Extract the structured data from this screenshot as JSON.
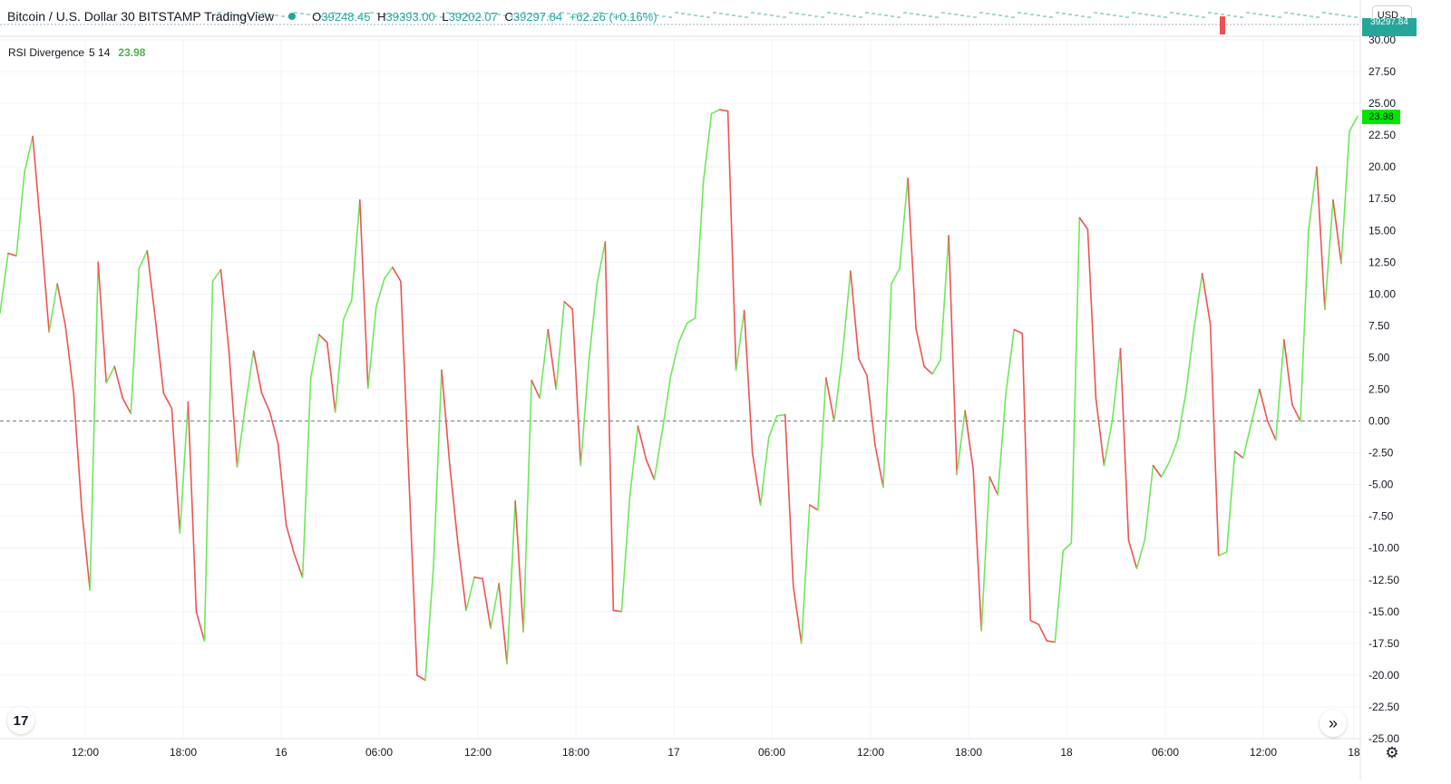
{
  "header": {
    "title": "Bitcoin / U.S. Dollar  30  BITSTAMP  TradingView",
    "ohlc": {
      "open_label": "O",
      "open": "39248.45",
      "high_label": "H",
      "high": "39393.00",
      "low_label": "L",
      "low": "39202.07",
      "close_label": "C",
      "close": "39297.84",
      "change": "+62.26 (+0.16%)"
    },
    "currency": "USD",
    "price_badge": "39297.84"
  },
  "indicator": {
    "name": "RSI Divergence",
    "params": "5 14",
    "value": "23.98"
  },
  "colors": {
    "up": "#6ee85a",
    "down": "#ef5350",
    "zero_line": "#787b86",
    "grid": "#f0f3fa",
    "badge": "#00e600"
  },
  "chart_data": {
    "type": "line",
    "title": "RSI Divergence 5 14",
    "xlabel": "",
    "ylabel": "",
    "ylim": [
      -25,
      30
    ],
    "y_ticks": [
      "30.00",
      "27.50",
      "25.00",
      "22.50",
      "20.00",
      "17.50",
      "15.00",
      "12.50",
      "10.00",
      "7.50",
      "5.00",
      "2.50",
      "0.00",
      "-2.50",
      "-5.00",
      "-7.50",
      "-10.00",
      "-12.50",
      "-15.00",
      "-17.50",
      "-20.00",
      "-22.50",
      "-25.00"
    ],
    "x_tick_labels": [
      "12:00",
      "18:00",
      "16",
      "06:00",
      "12:00",
      "18:00",
      "17",
      "06:00",
      "12:00",
      "18:00",
      "18",
      "06:00",
      "12:00",
      "18"
    ],
    "grid": true,
    "zero_line": true,
    "series": [
      {
        "values": [
          8.5,
          13.2,
          13.0,
          19.6,
          22.4,
          15.0,
          7.0,
          10.8,
          7.5,
          2.2,
          -7.0,
          -13.3,
          12.5,
          3.0,
          4.3,
          1.8,
          0.6,
          12.0,
          13.4,
          8.0,
          2.2,
          1.0,
          -8.8,
          1.5,
          -15.0,
          -17.3,
          11.0,
          11.9,
          5.5,
          -3.6,
          1.2,
          5.5,
          2.2,
          0.7,
          -1.8,
          -8.2,
          -10.5,
          -12.3,
          3.4,
          6.8,
          6.2,
          0.7,
          8.0,
          9.5,
          17.4,
          2.6,
          9.0,
          11.2,
          12.1,
          11.0,
          -4.5,
          -20.0,
          -20.4,
          -11.5,
          4.0,
          -3.5,
          -9.7,
          -14.9,
          -12.3,
          -12.4,
          -16.3,
          -12.8,
          -19.1,
          -6.3,
          -16.6,
          3.2,
          1.8,
          7.2,
          2.5,
          9.4,
          8.8,
          -3.5,
          4.7,
          10.8,
          14.1,
          -14.9,
          -15.0,
          -6.0,
          -0.4,
          -3.0,
          -4.6,
          -0.7,
          3.5,
          6.2,
          7.7,
          8.1,
          18.8,
          24.2,
          24.5,
          24.4,
          4.0,
          8.7,
          -2.5,
          -6.6,
          -1.3,
          0.4,
          0.5,
          -13.0,
          -17.5,
          -6.6,
          -7.0,
          3.4,
          0.0,
          5.2,
          11.8,
          4.9,
          3.6,
          -1.9,
          -5.2,
          10.8,
          12.0,
          19.1,
          7.3,
          4.3,
          3.7,
          4.8,
          14.6,
          -4.2,
          0.8,
          -3.8,
          -16.5,
          -4.4,
          -5.8,
          2.2,
          7.2,
          6.9,
          -15.7,
          -16.0,
          -17.3,
          -17.4,
          -10.2,
          -9.6,
          16.0,
          15.1,
          1.8,
          -3.5,
          0.0,
          5.7,
          -9.4,
          -11.6,
          -9.3,
          -3.5,
          -4.4,
          -3.2,
          -1.5,
          2.2,
          7.3,
          11.6,
          7.6,
          -10.6,
          -10.3,
          -2.4,
          -2.9,
          -0.2,
          2.5,
          0.0,
          -1.5,
          6.4,
          1.3,
          0.0,
          15.0,
          20.0,
          8.8,
          17.4,
          12.4,
          22.8,
          23.98
        ]
      }
    ]
  }
}
